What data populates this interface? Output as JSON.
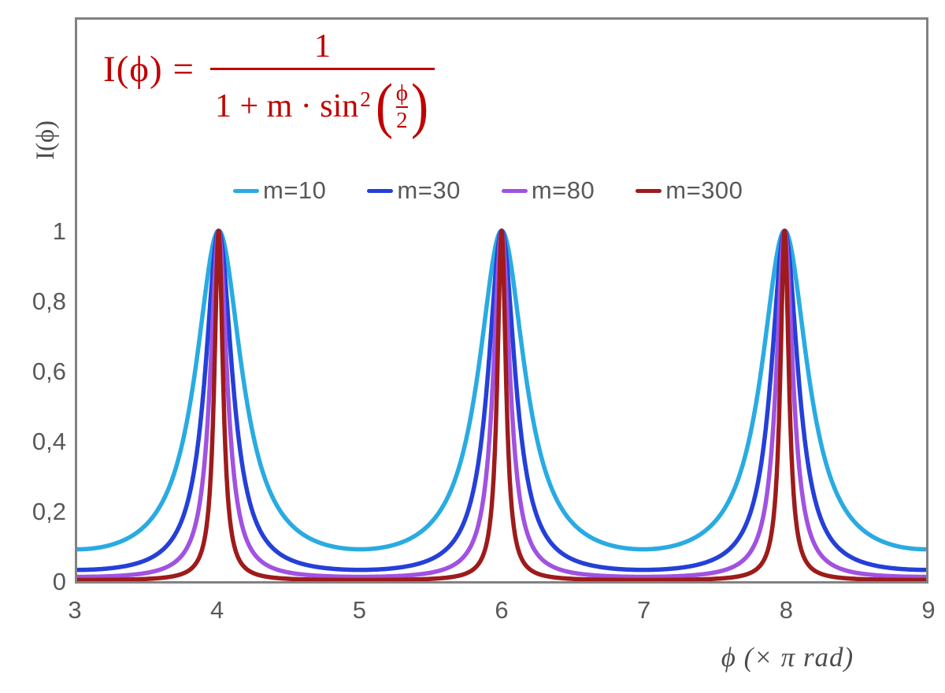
{
  "chart_data": {
    "type": "line",
    "title": "",
    "function": "I(phi) = 1 / (1 + m * sin^2(phi/2)); x axis in units of pi rad; peaks of value 1 at x = 4, 6, 8; minima at x = 3, 5, 7, 9",
    "formula": {
      "lhs": "I(ϕ) =",
      "numerator": "1",
      "denominator_prefix": "1 + m · sin",
      "exponent": "2",
      "inner_numerator": "ϕ",
      "inner_denominator": "2",
      "color": "#C00000"
    },
    "xlabel": "ϕ  (× π rad)",
    "ylabel": "I(ϕ)",
    "x_range": [
      3,
      9
    ],
    "ylim": [
      0,
      1.6
    ],
    "x_ticks": [
      "3",
      "4",
      "5",
      "6",
      "7",
      "8",
      "9"
    ],
    "x_tick_values": [
      3,
      4,
      5,
      6,
      7,
      8,
      9
    ],
    "y_ticks": [
      "0",
      "0,2",
      "0,4",
      "0,6",
      "0,8",
      "1"
    ],
    "y_tick_values": [
      0,
      0.2,
      0.4,
      0.6,
      0.8,
      1
    ],
    "grid": false,
    "legend_position": "top-center",
    "series": [
      {
        "name": "m=10",
        "m": 10,
        "color": "#29ABE2",
        "peak_value": 1,
        "min_value": 0.0909,
        "peaks_x": [
          4,
          6,
          8
        ]
      },
      {
        "name": "m=30",
        "m": 30,
        "color": "#2440D8",
        "peak_value": 1,
        "min_value": 0.0323,
        "peaks_x": [
          4,
          6,
          8
        ]
      },
      {
        "name": "m=80",
        "m": 80,
        "color": "#A152E0",
        "peak_value": 1,
        "min_value": 0.0123,
        "peaks_x": [
          4,
          6,
          8
        ]
      },
      {
        "name": "m=300",
        "m": 300,
        "color": "#9E1B1B",
        "peak_value": 1,
        "min_value": 0.0033,
        "peaks_x": [
          4,
          6,
          8
        ]
      }
    ],
    "axis_color": "#828282",
    "label_color": "#595959"
  },
  "layout_note": "white background, gray plot frame, formula top-left in dark red, legend of four colored dashes centered above curves"
}
